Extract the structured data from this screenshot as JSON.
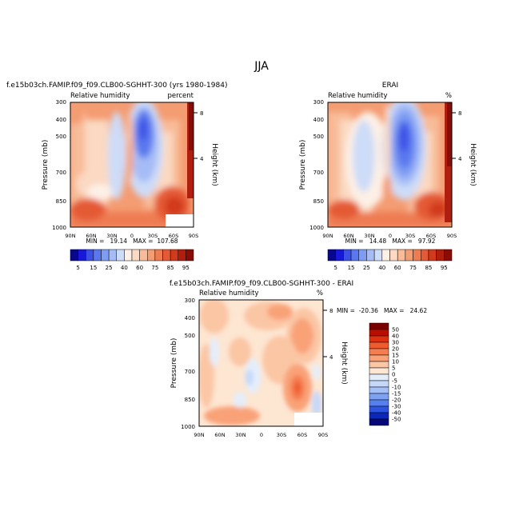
{
  "page_title": "JJA",
  "chart_data": [
    {
      "type": "heatmap",
      "title": "f.e15b03ch.FAMIP.f09_f09.CLB00-SGHHT-300 (yrs 1980-1984)",
      "subtitle_left": "Relative humidity",
      "subtitle_right": "percent",
      "xlabel": "",
      "ylabel": "Pressure (mb)",
      "ylabel_right": "Height (km)",
      "x_ticks": [
        "90N",
        "60N",
        "30N",
        "0",
        "30S",
        "60S",
        "90S"
      ],
      "y_ticks": [
        "300",
        "400",
        "500",
        "700",
        "850",
        "1000"
      ],
      "y_right_ticks": [
        "8",
        "4"
      ],
      "stats": "MIN =   19.14   MAX =  107.68",
      "min": 19.14,
      "max": 107.68,
      "colorbar": "abs"
    },
    {
      "type": "heatmap",
      "title": "ERAI",
      "subtitle_left": "Relative humidity",
      "subtitle_right": "%",
      "xlabel": "",
      "ylabel": "Pressure (mb)",
      "ylabel_right": "Height (km)",
      "x_ticks": [
        "90N",
        "60N",
        "30N",
        "0",
        "30S",
        "60S",
        "90S"
      ],
      "y_ticks": [
        "300",
        "400",
        "500",
        "700",
        "850",
        "1000"
      ],
      "y_right_ticks": [
        "8",
        "4"
      ],
      "stats": "MIN =   14.48   MAX =   97.92",
      "min": 14.48,
      "max": 97.92,
      "colorbar": "abs"
    },
    {
      "type": "heatmap",
      "title": "f.e15b03ch.FAMIP.f09_f09.CLB00-SGHHT-300 - ERAI",
      "subtitle_left": "Relative humidity",
      "subtitle_right": "%",
      "xlabel": "",
      "ylabel": "Pressure (mb)",
      "ylabel_right": "Height (km)",
      "x_ticks": [
        "90N",
        "60N",
        "30N",
        "0",
        "30S",
        "60S",
        "90S"
      ],
      "y_ticks": [
        "300",
        "400",
        "500",
        "700",
        "850",
        "1000"
      ],
      "y_right_ticks": [
        "8",
        "4"
      ],
      "stats": "MIN =  -20.36   MAX =   24.62",
      "min": -20.36,
      "max": 24.62,
      "colorbar": "diff"
    }
  ],
  "colorbar_abs": {
    "labels": [
      "5",
      "15",
      "25",
      "40",
      "60",
      "75",
      "85",
      "95"
    ],
    "colors": [
      "#08088f",
      "#1818d8",
      "#3c50e6",
      "#5a78ee",
      "#7e9cf3",
      "#a6bcf6",
      "#cddcf8",
      "#fdf0e6",
      "#fbd9c2",
      "#f8bc98",
      "#f49c72",
      "#ee7c52",
      "#e45a36",
      "#d23a1e",
      "#b01e0e",
      "#8a0c06"
    ]
  },
  "colorbar_diff": {
    "labels": [
      "50",
      "40",
      "30",
      "20",
      "15",
      "10",
      "5",
      "0",
      "-5",
      "-10",
      "-15",
      "-20",
      "-30",
      "-40",
      "-50"
    ],
    "colors": [
      "#7a0000",
      "#b80f00",
      "#dc3010",
      "#ef5a2e",
      "#f57e50",
      "#f9a278",
      "#fbc6a4",
      "#fde6d2",
      "#e4eefb",
      "#c6d8fa",
      "#a4c0f6",
      "#7ea2f2",
      "#5680ec",
      "#2c54de",
      "#0c28b8",
      "#06087a"
    ]
  }
}
